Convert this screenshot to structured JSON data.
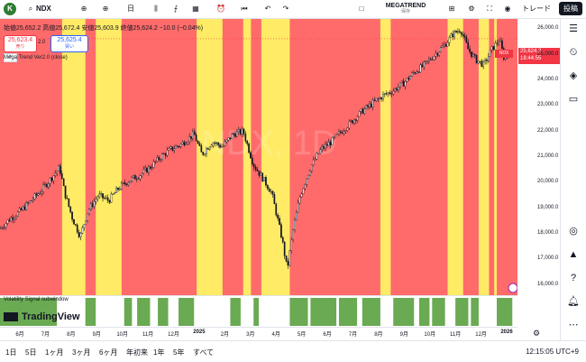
{
  "toolbar": {
    "logo": "K",
    "symbol": "NDX",
    "timeframe": "日",
    "indicator_name": "MEGATREND",
    "indicator_sub": "保存",
    "trade_label": "トレード",
    "post_label": "投稿"
  },
  "legend": {
    "ohlc": "始値25,652.2  高値25,672.4  安値25,603.9  終値25,624.2  −10.0 (−0.04%)",
    "sell_value": "25,623.4",
    "sell_label": "売り",
    "spread": "2.0",
    "buy_value": "25,625.4",
    "buy_label": "買い",
    "collapse_icon": "^",
    "indicator_label": "Mega Trend Ver2.0 (close)"
  },
  "price_tag": {
    "symbol": "NDX",
    "price": "25,624.2",
    "countdown": "18:44:55"
  },
  "subpane_label": "Volatility Signal subwindow",
  "branding": "TradingView",
  "time_display": "12:15:05 UTC+9",
  "range_buttons": [
    "1日",
    "5日",
    "1ヶ月",
    "3ヶ月",
    "6ヶ月",
    "年初来",
    "1年",
    "5年",
    "すべて"
  ],
  "colors": {
    "bearish_zone": "#ff6b6b",
    "neutral_zone": "#ffeb66",
    "signal_bar": "#6aaa52",
    "candle": "#131722",
    "price_tag": "#f23645",
    "accent_blue": "#2962ff"
  },
  "watermark": "NDX, 1D",
  "chart_data": {
    "type": "candlestick",
    "symbol": "NDX",
    "interval": "1D",
    "y_axis_ticks": [
      16000,
      17000,
      18000,
      19000,
      20000,
      21000,
      22000,
      23000,
      24000,
      25000,
      26000
    ],
    "y_axis_labels": [
      "16,000.0",
      "17,000.0",
      "18,000.0",
      "19,000.0",
      "20,000.0",
      "21,000.0",
      "22,000.0",
      "23,000.0",
      "24,000.0",
      "25,000.0",
      "26,000.0"
    ],
    "ylim": [
      15600,
      26400
    ],
    "x_axis_labels": [
      "6月",
      "7月",
      "8月",
      "9月",
      "10月",
      "11月",
      "12月",
      "2025",
      "2月",
      "3月",
      "4月",
      "5月",
      "6月",
      "7月",
      "8月",
      "9月",
      "10月",
      "11月",
      "12月",
      "2026"
    ],
    "x_axis_bold": [
      "2025",
      "2026"
    ],
    "close_path": [
      {
        "x": 0.0,
        "y": 18200
      },
      {
        "x": 0.02,
        "y": 18600
      },
      {
        "x": 0.04,
        "y": 18900
      },
      {
        "x": 0.06,
        "y": 19300
      },
      {
        "x": 0.08,
        "y": 19700
      },
      {
        "x": 0.1,
        "y": 20200
      },
      {
        "x": 0.115,
        "y": 20600
      },
      {
        "x": 0.125,
        "y": 19600
      },
      {
        "x": 0.14,
        "y": 18600
      },
      {
        "x": 0.155,
        "y": 17900
      },
      {
        "x": 0.17,
        "y": 18900
      },
      {
        "x": 0.19,
        "y": 19500
      },
      {
        "x": 0.21,
        "y": 19300
      },
      {
        "x": 0.23,
        "y": 19800
      },
      {
        "x": 0.25,
        "y": 20100
      },
      {
        "x": 0.27,
        "y": 20300
      },
      {
        "x": 0.29,
        "y": 20600
      },
      {
        "x": 0.31,
        "y": 21000
      },
      {
        "x": 0.33,
        "y": 21300
      },
      {
        "x": 0.35,
        "y": 21500
      },
      {
        "x": 0.375,
        "y": 21900
      },
      {
        "x": 0.39,
        "y": 21100
      },
      {
        "x": 0.41,
        "y": 21600
      },
      {
        "x": 0.43,
        "y": 21400
      },
      {
        "x": 0.45,
        "y": 21900
      },
      {
        "x": 0.47,
        "y": 22000
      },
      {
        "x": 0.49,
        "y": 20700
      },
      {
        "x": 0.51,
        "y": 20100
      },
      {
        "x": 0.525,
        "y": 19600
      },
      {
        "x": 0.545,
        "y": 17800
      },
      {
        "x": 0.555,
        "y": 16600
      },
      {
        "x": 0.565,
        "y": 18000
      },
      {
        "x": 0.58,
        "y": 19500
      },
      {
        "x": 0.6,
        "y": 20600
      },
      {
        "x": 0.62,
        "y": 21300
      },
      {
        "x": 0.64,
        "y": 21600
      },
      {
        "x": 0.66,
        "y": 22000
      },
      {
        "x": 0.68,
        "y": 22400
      },
      {
        "x": 0.7,
        "y": 22800
      },
      {
        "x": 0.72,
        "y": 23100
      },
      {
        "x": 0.74,
        "y": 23400
      },
      {
        "x": 0.76,
        "y": 23600
      },
      {
        "x": 0.78,
        "y": 23900
      },
      {
        "x": 0.8,
        "y": 24300
      },
      {
        "x": 0.82,
        "y": 24600
      },
      {
        "x": 0.84,
        "y": 25000
      },
      {
        "x": 0.86,
        "y": 25400
      },
      {
        "x": 0.875,
        "y": 25800
      },
      {
        "x": 0.89,
        "y": 26000
      },
      {
        "x": 0.905,
        "y": 25200
      },
      {
        "x": 0.92,
        "y": 24800
      },
      {
        "x": 0.935,
        "y": 24600
      },
      {
        "x": 0.95,
        "y": 25200
      },
      {
        "x": 0.965,
        "y": 25600
      },
      {
        "x": 0.975,
        "y": 24800
      },
      {
        "x": 0.99,
        "y": 25400
      },
      {
        "x": 1.0,
        "y": 25624
      }
    ],
    "zones": [
      {
        "from": 0.0,
        "to": 0.12,
        "type": "bearish"
      },
      {
        "from": 0.12,
        "to": 0.165,
        "type": "neutral"
      },
      {
        "from": 0.165,
        "to": 0.185,
        "type": "bearish"
      },
      {
        "from": 0.185,
        "to": 0.205,
        "type": "neutral"
      },
      {
        "from": 0.205,
        "to": 0.235,
        "type": "neutral"
      },
      {
        "from": 0.235,
        "to": 0.38,
        "type": "bearish"
      },
      {
        "from": 0.38,
        "to": 0.43,
        "type": "neutral"
      },
      {
        "from": 0.43,
        "to": 0.47,
        "type": "bearish"
      },
      {
        "from": 0.47,
        "to": 0.485,
        "type": "neutral"
      },
      {
        "from": 0.485,
        "to": 0.505,
        "type": "bearish"
      },
      {
        "from": 0.505,
        "to": 0.56,
        "type": "neutral"
      },
      {
        "from": 0.56,
        "to": 0.735,
        "type": "bearish"
      },
      {
        "from": 0.735,
        "to": 0.755,
        "type": "neutral"
      },
      {
        "from": 0.755,
        "to": 0.865,
        "type": "bearish"
      },
      {
        "from": 0.865,
        "to": 0.895,
        "type": "neutral"
      },
      {
        "from": 0.895,
        "to": 0.925,
        "type": "bearish"
      },
      {
        "from": 0.925,
        "to": 0.945,
        "type": "neutral"
      },
      {
        "from": 0.945,
        "to": 0.955,
        "type": "bearish"
      },
      {
        "from": 0.955,
        "to": 0.96,
        "type": "neutral"
      },
      {
        "from": 0.96,
        "to": 1.0,
        "type": "bearish"
      }
    ],
    "signal_bars": [
      {
        "from": 0.0,
        "to": 0.11
      },
      {
        "from": 0.165,
        "to": 0.185
      },
      {
        "from": 0.24,
        "to": 0.255
      },
      {
        "from": 0.265,
        "to": 0.29
      },
      {
        "from": 0.305,
        "to": 0.325
      },
      {
        "from": 0.345,
        "to": 0.375
      },
      {
        "from": 0.445,
        "to": 0.465
      },
      {
        "from": 0.49,
        "to": 0.5
      },
      {
        "from": 0.56,
        "to": 0.595
      },
      {
        "from": 0.6,
        "to": 0.65
      },
      {
        "from": 0.655,
        "to": 0.69
      },
      {
        "from": 0.7,
        "to": 0.735
      },
      {
        "from": 0.76,
        "to": 0.8
      },
      {
        "from": 0.81,
        "to": 0.83
      },
      {
        "from": 0.835,
        "to": 0.86
      },
      {
        "from": 0.88,
        "to": 0.905
      },
      {
        "from": 0.91,
        "to": 0.925
      },
      {
        "from": 0.96,
        "to": 0.99
      }
    ],
    "last_close": 25624.2
  }
}
